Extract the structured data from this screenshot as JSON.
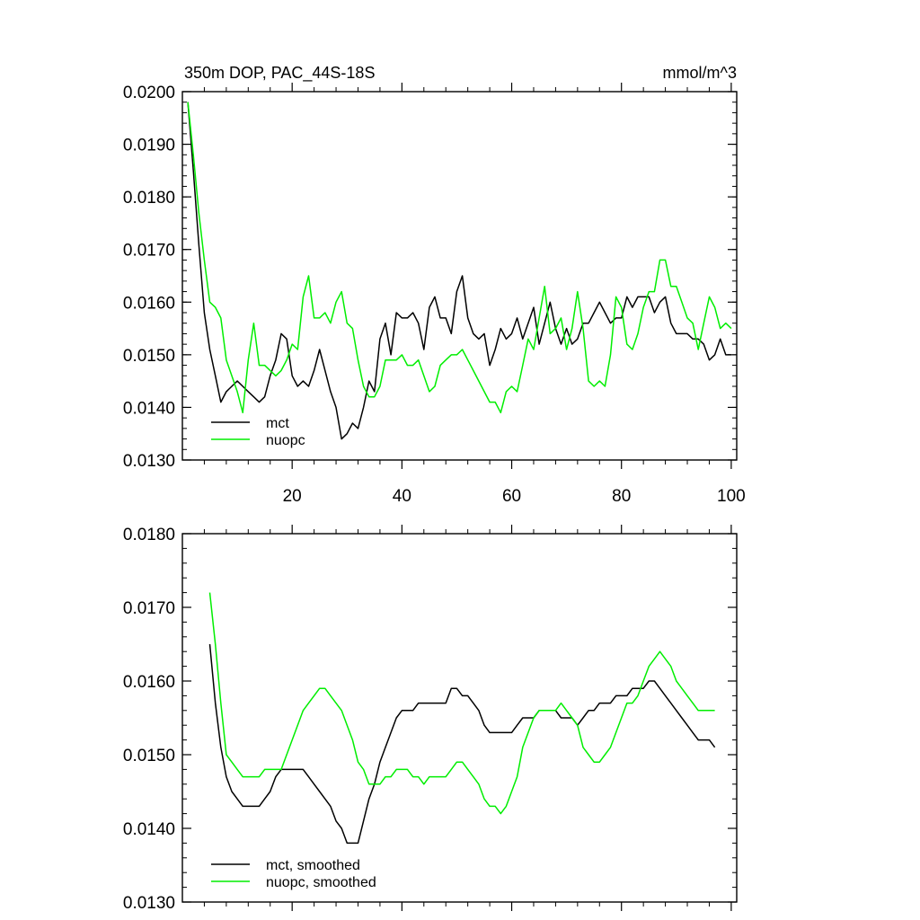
{
  "chart_data": [
    {
      "type": "line",
      "title": "350m DOP, PAC_44S-18S",
      "units": "mmol/m^3",
      "xlim": [
        0,
        101
      ],
      "ylim": [
        0.013,
        0.02
      ],
      "yticks": [
        0.013,
        0.014,
        0.015,
        0.016,
        0.017,
        0.018,
        0.019,
        0.02
      ],
      "ytick_labels": [
        "0.0130",
        "0.0140",
        "0.0150",
        "0.0160",
        "0.0170",
        "0.0180",
        "0.0190",
        "0.0200"
      ],
      "xticks": [
        20,
        40,
        60,
        80,
        100
      ],
      "xtick_labels": [
        "20",
        "40",
        "60",
        "80",
        "100"
      ],
      "legend_position": "bottom-left",
      "series": [
        {
          "name": "mct",
          "color": "#000000",
          "x_start": 1,
          "values": [
            0.0198,
            0.0185,
            0.0171,
            0.0158,
            0.0151,
            0.0146,
            0.0141,
            0.0143,
            0.0144,
            0.0145,
            0.0144,
            0.0143,
            0.0142,
            0.0141,
            0.0142,
            0.0146,
            0.0149,
            0.0154,
            0.0153,
            0.0146,
            0.0144,
            0.0145,
            0.0144,
            0.0147,
            0.0151,
            0.0147,
            0.0143,
            0.014,
            0.0134,
            0.0135,
            0.0137,
            0.0136,
            0.014,
            0.0145,
            0.0143,
            0.0153,
            0.0156,
            0.015,
            0.0158,
            0.0157,
            0.0157,
            0.0158,
            0.0156,
            0.0151,
            0.0159,
            0.0161,
            0.0157,
            0.0157,
            0.0154,
            0.0162,
            0.0165,
            0.0157,
            0.0154,
            0.0153,
            0.0154,
            0.0148,
            0.0151,
            0.0155,
            0.0153,
            0.0154,
            0.0157,
            0.0153,
            0.0156,
            0.0159,
            0.0152,
            0.0156,
            0.016,
            0.0155,
            0.0152,
            0.0155,
            0.0152,
            0.0153,
            0.0156,
            0.0156,
            0.0158,
            0.016,
            0.0158,
            0.0156,
            0.0157,
            0.0157,
            0.0161,
            0.0159,
            0.0161,
            0.0161,
            0.0161,
            0.0158,
            0.016,
            0.0161,
            0.0156,
            0.0154,
            0.0154,
            0.0154,
            0.0153,
            0.0153,
            0.0152,
            0.0149,
            0.015,
            0.0153,
            0.015,
            0.015
          ]
        },
        {
          "name": "nuopc",
          "color": "#00ee00",
          "x_start": 1,
          "values": [
            0.0198,
            0.0188,
            0.0177,
            0.0168,
            0.016,
            0.0159,
            0.0157,
            0.0149,
            0.0146,
            0.0143,
            0.0139,
            0.0149,
            0.0156,
            0.0148,
            0.0148,
            0.0147,
            0.0146,
            0.0147,
            0.0149,
            0.0152,
            0.0151,
            0.0161,
            0.0165,
            0.0157,
            0.0157,
            0.0158,
            0.0156,
            0.016,
            0.0162,
            0.0156,
            0.0155,
            0.0149,
            0.0144,
            0.0142,
            0.0142,
            0.0144,
            0.0149,
            0.0149,
            0.0149,
            0.015,
            0.0148,
            0.0148,
            0.0149,
            0.0146,
            0.0143,
            0.0144,
            0.0148,
            0.0149,
            0.015,
            0.015,
            0.0151,
            0.0149,
            0.0147,
            0.0145,
            0.0143,
            0.0141,
            0.0141,
            0.0139,
            0.0143,
            0.0144,
            0.0143,
            0.0148,
            0.0153,
            0.0151,
            0.0157,
            0.0163,
            0.0154,
            0.0155,
            0.0157,
            0.0151,
            0.0155,
            0.0162,
            0.0155,
            0.0145,
            0.0144,
            0.0145,
            0.0144,
            0.015,
            0.0161,
            0.0159,
            0.0152,
            0.0151,
            0.0154,
            0.0159,
            0.0162,
            0.0162,
            0.0168,
            0.0168,
            0.0163,
            0.0163,
            0.016,
            0.0157,
            0.0156,
            0.0151,
            0.0156,
            0.0161,
            0.0159,
            0.0155,
            0.0156,
            0.0155
          ]
        }
      ]
    },
    {
      "type": "line",
      "xlim": [
        0,
        101
      ],
      "ylim": [
        0.013,
        0.018
      ],
      "yticks": [
        0.013,
        0.014,
        0.015,
        0.016,
        0.017,
        0.018
      ],
      "ytick_labels": [
        "0.0130",
        "0.0140",
        "0.0150",
        "0.0160",
        "0.0170",
        "0.0180"
      ],
      "xticks": [
        20,
        40,
        60,
        80,
        100
      ],
      "legend_position": "bottom-left",
      "series": [
        {
          "name": "mct, smoothed",
          "color": "#000000",
          "x_start": 5,
          "values": [
            0.0165,
            0.0157,
            0.0151,
            0.0147,
            0.0145,
            0.0144,
            0.0143,
            0.0143,
            0.0143,
            0.0143,
            0.0144,
            0.0145,
            0.0147,
            0.0148,
            0.0148,
            0.0148,
            0.0148,
            0.0148,
            0.0147,
            0.0146,
            0.0145,
            0.0144,
            0.0143,
            0.0141,
            0.014,
            0.0138,
            0.0138,
            0.0138,
            0.0141,
            0.0144,
            0.0146,
            0.0149,
            0.0151,
            0.0153,
            0.0155,
            0.0156,
            0.0156,
            0.0156,
            0.0157,
            0.0157,
            0.0157,
            0.0157,
            0.0157,
            0.0157,
            0.0159,
            0.0159,
            0.0158,
            0.0158,
            0.0157,
            0.0156,
            0.0154,
            0.0153,
            0.0153,
            0.0153,
            0.0153,
            0.0153,
            0.0154,
            0.0155,
            0.0155,
            0.0155,
            0.0156,
            0.0156,
            0.0156,
            0.0156,
            0.0155,
            0.0155,
            0.0155,
            0.0154,
            0.0155,
            0.0156,
            0.0156,
            0.0157,
            0.0157,
            0.0157,
            0.0158,
            0.0158,
            0.0158,
            0.0159,
            0.0159,
            0.0159,
            0.016,
            0.016,
            0.0159,
            0.0158,
            0.0157,
            0.0156,
            0.0155,
            0.0154,
            0.0153,
            0.0152,
            0.0152,
            0.0152,
            0.0151
          ]
        },
        {
          "name": "nuopc, smoothed",
          "color": "#00ee00",
          "x_start": 5,
          "values": [
            0.0172,
            0.0165,
            0.0157,
            0.015,
            0.0149,
            0.0148,
            0.0147,
            0.0147,
            0.0147,
            0.0147,
            0.0148,
            0.0148,
            0.0148,
            0.0148,
            0.015,
            0.0152,
            0.0154,
            0.0156,
            0.0157,
            0.0158,
            0.0159,
            0.0159,
            0.0158,
            0.0157,
            0.0156,
            0.0154,
            0.0152,
            0.0149,
            0.0148,
            0.0146,
            0.0146,
            0.0146,
            0.0147,
            0.0147,
            0.0148,
            0.0148,
            0.0148,
            0.0147,
            0.0147,
            0.0146,
            0.0147,
            0.0147,
            0.0147,
            0.0147,
            0.0148,
            0.0149,
            0.0149,
            0.0148,
            0.0147,
            0.0146,
            0.0144,
            0.0143,
            0.0143,
            0.0142,
            0.0143,
            0.0145,
            0.0147,
            0.0151,
            0.0153,
            0.0155,
            0.0156,
            0.0156,
            0.0156,
            0.0156,
            0.0157,
            0.0156,
            0.0155,
            0.0154,
            0.0151,
            0.015,
            0.0149,
            0.0149,
            0.015,
            0.0151,
            0.0153,
            0.0155,
            0.0157,
            0.0157,
            0.0158,
            0.016,
            0.0162,
            0.0163,
            0.0164,
            0.0163,
            0.0162,
            0.016,
            0.0159,
            0.0158,
            0.0157,
            0.0156,
            0.0156,
            0.0156,
            0.0156
          ]
        }
      ]
    }
  ]
}
